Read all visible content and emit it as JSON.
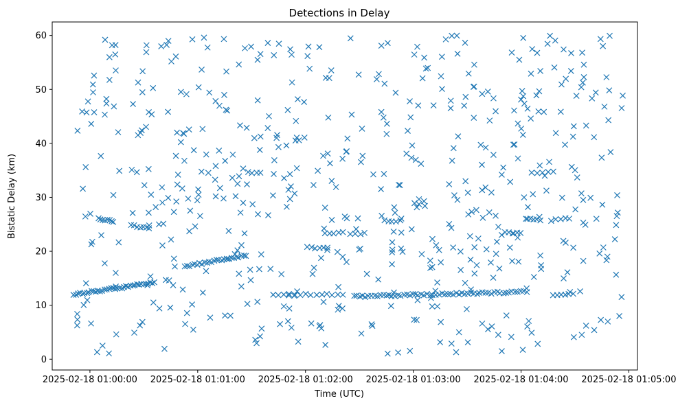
{
  "chart_data": {
    "type": "scatter",
    "title": "Detections in Delay",
    "xlabel": "Time (UTC)",
    "ylabel": "Bistatic Delay (km)",
    "marker": "x",
    "color": "#1f77b4",
    "x_unit": "minutes after 2025-02-18 01:00:00",
    "xlim": [
      -0.35,
      5.08
    ],
    "ylim": [
      -2.0,
      62.5
    ],
    "grid": false,
    "x_ticks": [
      {
        "value": 0,
        "label": "2025-02-18 01:00:00"
      },
      {
        "value": 1,
        "label": "2025-02-18 01:01:00"
      },
      {
        "value": 2,
        "label": "2025-02-18 01:02:00"
      },
      {
        "value": 3,
        "label": "2025-02-18 01:03:00"
      },
      {
        "value": 4,
        "label": "2025-02-18 01:04:00"
      },
      {
        "value": 5,
        "label": "2025-02-18 01:05:00"
      }
    ],
    "y_ticks": [
      0,
      10,
      20,
      30,
      40,
      50,
      60
    ],
    "tracks": [
      {
        "x_start": -0.15,
        "x_end": 0.6,
        "y_start": 12.0,
        "y_end": 14.2,
        "points": 38
      },
      {
        "x_start": 0.88,
        "x_end": 1.45,
        "y_start": 17.2,
        "y_end": 19.2,
        "points": 26
      },
      {
        "x_start": 2.45,
        "x_end": 4.05,
        "y_start": 11.6,
        "y_end": 12.5,
        "points": 60
      },
      {
        "x_start": 1.7,
        "x_end": 2.35,
        "y_start": 12.0,
        "y_end": 12.0,
        "points": 14
      },
      {
        "x_start": 0.08,
        "x_end": 0.22,
        "y_start": 26.0,
        "y_end": 25.5,
        "points": 8
      },
      {
        "x_start": 0.38,
        "x_end": 0.55,
        "y_start": 24.8,
        "y_end": 24.2,
        "points": 7
      },
      {
        "x_start": 2.02,
        "x_end": 2.2,
        "y_start": 20.8,
        "y_end": 20.5,
        "points": 6
      },
      {
        "x_start": 2.18,
        "x_end": 2.35,
        "y_start": 23.3,
        "y_end": 23.6,
        "points": 5
      },
      {
        "x_start": 2.73,
        "x_end": 2.88,
        "y_start": 25.6,
        "y_end": 25.6,
        "points": 5
      },
      {
        "x_start": 4.05,
        "x_end": 4.18,
        "y_start": 26.1,
        "y_end": 25.8,
        "points": 5
      },
      {
        "x_start": 4.1,
        "x_end": 4.3,
        "y_start": 34.6,
        "y_end": 34.6,
        "points": 5
      },
      {
        "x_start": 4.28,
        "x_end": 4.45,
        "y_start": 25.8,
        "y_end": 26.2,
        "points": 5
      },
      {
        "x_start": 4.3,
        "x_end": 4.48,
        "y_start": 12.0,
        "y_end": 12.0,
        "points": 6
      },
      {
        "x_start": 3.85,
        "x_end": 4.0,
        "y_start": 23.6,
        "y_end": 23.3,
        "points": 5
      },
      {
        "x_start": 2.42,
        "x_end": 2.55,
        "y_start": 23.3,
        "y_end": 23.3,
        "points": 4
      },
      {
        "x_start": 1.47,
        "x_end": 1.58,
        "y_start": 34.6,
        "y_end": 34.6,
        "points": 4
      },
      {
        "x_start": 0.55,
        "x_end": 0.73,
        "y_start": 27.3,
        "y_end": 29.8,
        "points": 4
      }
    ],
    "scattered_points": {
      "count": 560,
      "x_range": [
        -0.12,
        4.95
      ],
      "y_range": [
        1.0,
        60.0
      ],
      "note": "Noise detections spread uniformly across the plot"
    }
  }
}
